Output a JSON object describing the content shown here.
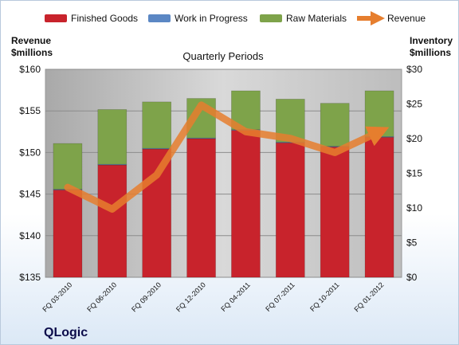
{
  "colors": {
    "finished_goods": "#c8232c",
    "work_in_progress": "#5b87c4",
    "raw_materials": "#7ea34a",
    "revenue": "#e67e2e",
    "plot_bg": "#c8c8c8"
  },
  "brand": "QLogic",
  "chart_data": {
    "type": "bar",
    "stacked": true,
    "title": "Quarterly Periods",
    "categories": [
      "FQ 03-2010",
      "FQ 06-2010",
      "FQ 09-2010",
      "FQ 12-2010",
      "FQ 04-2011",
      "FQ 07-2011",
      "FQ 10-2011",
      "FQ 01-2012"
    ],
    "left_axis": {
      "label_line1": "Revenue",
      "label_line2": "$millions",
      "range": [
        135,
        160
      ],
      "ticks": [
        "$135",
        "$140",
        "$145",
        "$150",
        "$155",
        "$160"
      ],
      "tick_values": [
        135,
        140,
        145,
        150,
        155,
        160
      ]
    },
    "right_axis": {
      "label_line1": "Inventory",
      "label_line2": "$millions",
      "range": [
        0,
        30
      ],
      "ticks": [
        "$0",
        "$5",
        "$10",
        "$15",
        "$20",
        "$25",
        "$30"
      ],
      "tick_values": [
        0,
        5,
        10,
        15,
        20,
        25,
        30
      ]
    },
    "legend": [
      "Finished Goods",
      "Work in Progress",
      "Raw Materials",
      "Revenue"
    ],
    "series": [
      {
        "name": "Finished Goods",
        "axis": "right",
        "values": [
          12.6,
          16.2,
          18.5,
          20.0,
          21.2,
          19.4,
          18.8,
          20.2
        ]
      },
      {
        "name": "Work in Progress",
        "axis": "right",
        "values": [
          0.1,
          0.1,
          0.1,
          0.1,
          0.1,
          0.1,
          0.1,
          0.1
        ]
      },
      {
        "name": "Raw Materials",
        "axis": "right",
        "values": [
          6.6,
          7.9,
          6.7,
          5.7,
          5.6,
          6.2,
          6.2,
          6.6
        ]
      },
      {
        "name": "Revenue",
        "axis": "left",
        "type": "line",
        "values": [
          145.8,
          143.2,
          147.3,
          155.7,
          152.5,
          151.7,
          150.0,
          152.5
        ]
      }
    ],
    "grid": true,
    "legend_position": "top"
  }
}
